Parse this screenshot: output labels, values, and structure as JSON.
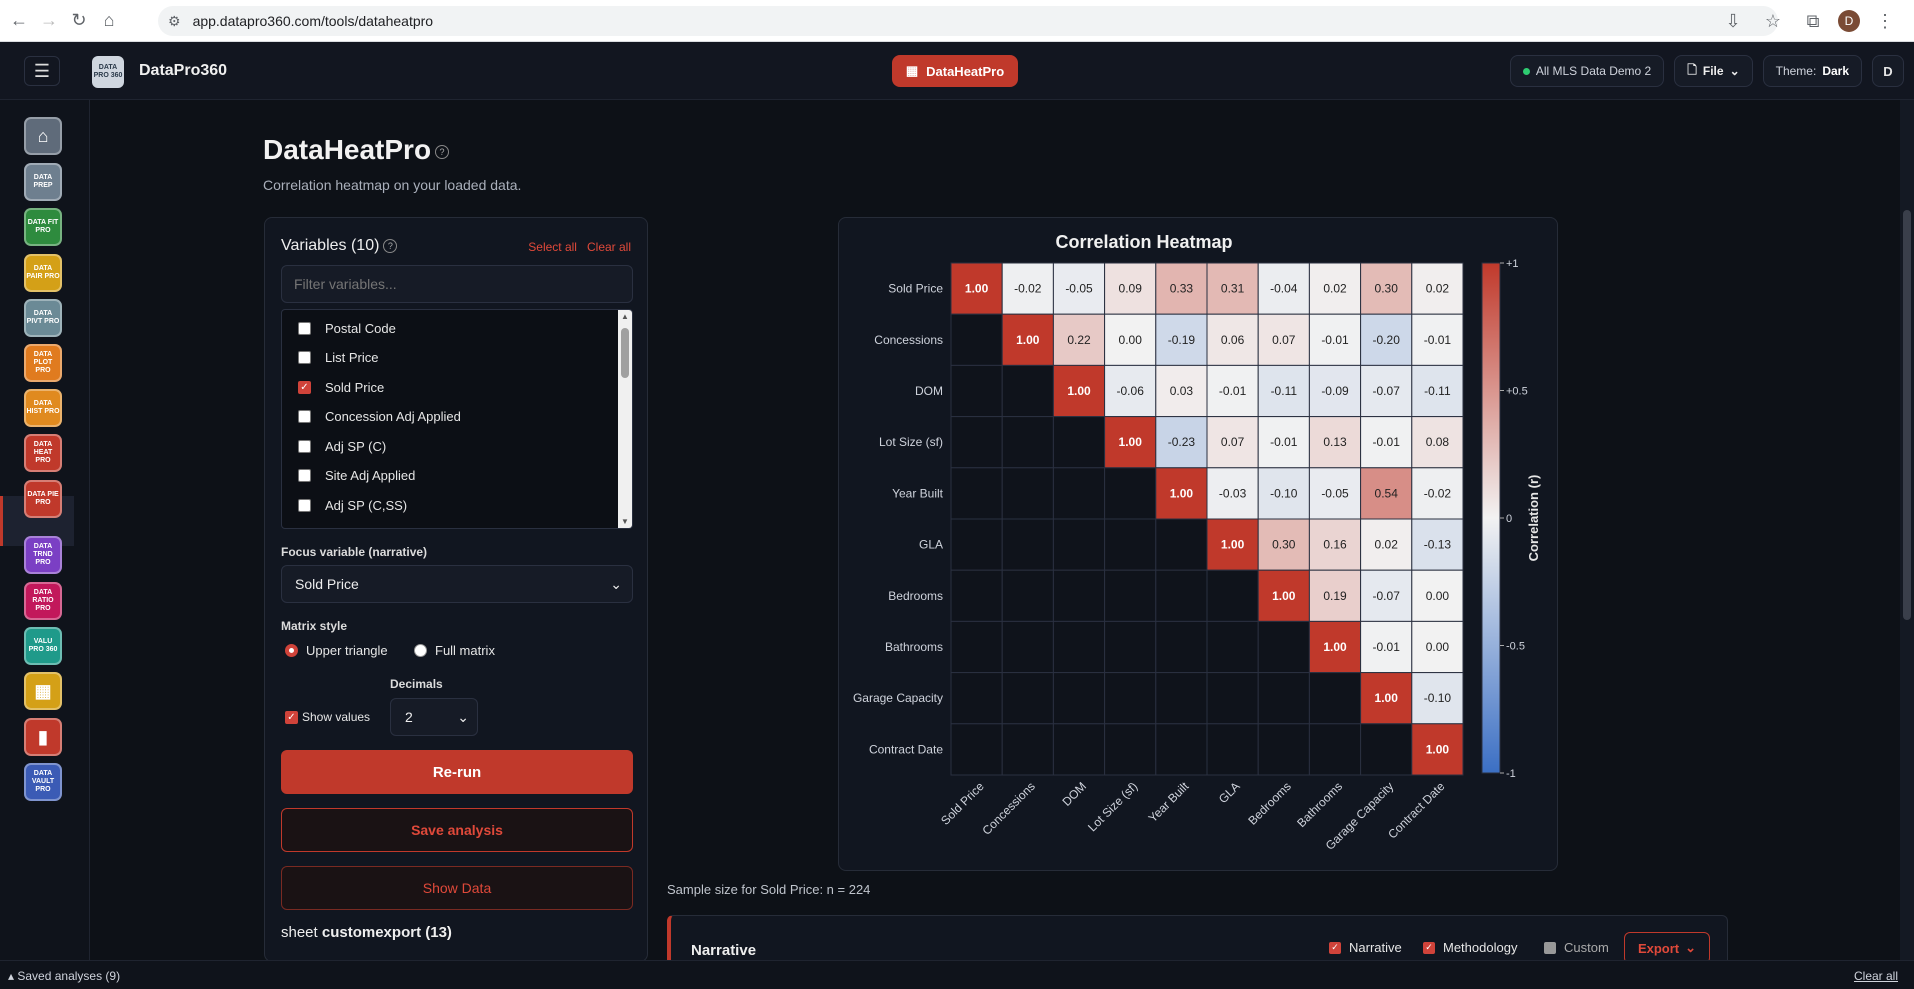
{
  "browser": {
    "url": "app.datapro360.com/tools/dataheatpro",
    "profile_initial": "D"
  },
  "header": {
    "brand": "DataPro360",
    "logo_text": "DATA PRO 360",
    "active_tool": "DataHeatPro",
    "dataset": "All MLS Data Demo 2",
    "file_label": "File",
    "theme_label": "Theme:",
    "theme_value": "Dark",
    "user_initial": "D"
  },
  "sidebar": {
    "items": [
      {
        "name": "home",
        "label": "⌂",
        "color": "#5f6b7a"
      },
      {
        "name": "dataprep",
        "label": "DATA PREP",
        "color": "#6e7f8f"
      },
      {
        "name": "datafit",
        "label": "DATA FIT PRO",
        "color": "#2e8b3e"
      },
      {
        "name": "datapair",
        "label": "DATA PAIR PRO",
        "color": "#d4a017"
      },
      {
        "name": "datapivt",
        "label": "DATA PIVT PRO",
        "color": "#6b8a96"
      },
      {
        "name": "dataplot",
        "label": "DATA PLOT PRO",
        "color": "#e07b1f"
      },
      {
        "name": "datahist",
        "label": "DATA HIST PRO",
        "color": "#e08a1f"
      },
      {
        "name": "dataheat",
        "label": "DATA HEAT PRO",
        "color": "#c0392b"
      },
      {
        "name": "datapie",
        "label": "DATA PIE PRO",
        "color": "#c0392b"
      },
      {
        "name": "datatrnd",
        "label": "DATA TRND PRO",
        "color": "#7b3fc4"
      },
      {
        "name": "dataratio",
        "label": "DATA RATIO PRO",
        "color": "#c2185b"
      },
      {
        "name": "valupro",
        "label": "VALU PRO 360",
        "color": "#1f9a8a"
      },
      {
        "name": "grid",
        "label": "▦",
        "color": "#d4a017"
      },
      {
        "name": "report",
        "label": "▮",
        "color": "#c0392b"
      },
      {
        "name": "datavault",
        "label": "DATA VAULT PRO",
        "color": "#3b5bb5"
      }
    ]
  },
  "page": {
    "title": "DataHeatPro",
    "subtitle": "Correlation heatmap on your loaded data."
  },
  "variables": {
    "title": "Variables (10)",
    "select_all": "Select all",
    "clear_all": "Clear all",
    "filter_placeholder": "Filter variables...",
    "items": [
      {
        "label": "Postal Code",
        "checked": false
      },
      {
        "label": "List Price",
        "checked": false
      },
      {
        "label": "Sold Price",
        "checked": true
      },
      {
        "label": "Concession Adj Applied",
        "checked": false
      },
      {
        "label": "Adj SP (C)",
        "checked": false
      },
      {
        "label": "Site Adj Applied",
        "checked": false
      },
      {
        "label": "Adj SP (C,SS)",
        "checked": false
      }
    ]
  },
  "controls": {
    "focus_label": "Focus variable (narrative)",
    "focus_value": "Sold Price",
    "matrix_style_label": "Matrix style",
    "upper_triangle": "Upper triangle",
    "full_matrix": "Full matrix",
    "decimals_label": "Decimals",
    "decimals_value": "2",
    "show_values": "Show values",
    "rerun": "Re-run",
    "save": "Save analysis",
    "show_data": "Show Data",
    "sheet_prefix": "sheet",
    "sheet_name": "customexport (13)"
  },
  "chart_data": {
    "type": "heatmap",
    "title": "Correlation Heatmap",
    "variables": [
      "Sold Price",
      "Concessions",
      "DOM",
      "Lot Size (sf)",
      "Year Built",
      "GLA",
      "Bedrooms",
      "Bathrooms",
      "Garage Capacity",
      "Contract Date"
    ],
    "matrix_style": "upper triangle",
    "values": [
      [
        1.0,
        -0.02,
        -0.05,
        0.09,
        0.33,
        0.31,
        -0.04,
        0.02,
        0.3,
        0.02
      ],
      [
        null,
        1.0,
        0.22,
        0.0,
        -0.19,
        0.06,
        0.07,
        -0.01,
        -0.2,
        -0.01
      ],
      [
        null,
        null,
        1.0,
        -0.06,
        0.03,
        -0.01,
        -0.11,
        -0.09,
        -0.07,
        -0.11
      ],
      [
        null,
        null,
        null,
        1.0,
        -0.23,
        0.07,
        -0.01,
        0.13,
        -0.01,
        0.08
      ],
      [
        null,
        null,
        null,
        null,
        1.0,
        -0.03,
        -0.1,
        -0.05,
        0.54,
        -0.02
      ],
      [
        null,
        null,
        null,
        null,
        null,
        1.0,
        0.3,
        0.16,
        0.02,
        -0.13
      ],
      [
        null,
        null,
        null,
        null,
        null,
        null,
        1.0,
        0.19,
        -0.07,
        0.0
      ],
      [
        null,
        null,
        null,
        null,
        null,
        null,
        null,
        1.0,
        -0.01,
        0.0
      ],
      [
        null,
        null,
        null,
        null,
        null,
        null,
        null,
        null,
        1.0,
        -0.1
      ],
      [
        null,
        null,
        null,
        null,
        null,
        null,
        null,
        null,
        null,
        1.0
      ]
    ],
    "colorbar": {
      "label": "Correlation (r)",
      "ticks": [
        "+1",
        "+0.5",
        "0",
        "-0.5",
        "-1"
      ],
      "low_color": "#3b6fc4",
      "mid_color": "#f2f2f2",
      "high_color": "#c0392b"
    },
    "range": [
      -1,
      1
    ]
  },
  "sample_text": "Sample size for Sold Price: n = 224",
  "narrative": {
    "title": "Narrative",
    "opt_narrative": "Narrative",
    "opt_methodology": "Methodology",
    "opt_custom": "Custom",
    "export": "Export"
  },
  "footer": {
    "saved": "Saved analyses (9)",
    "clear": "Clear all"
  }
}
